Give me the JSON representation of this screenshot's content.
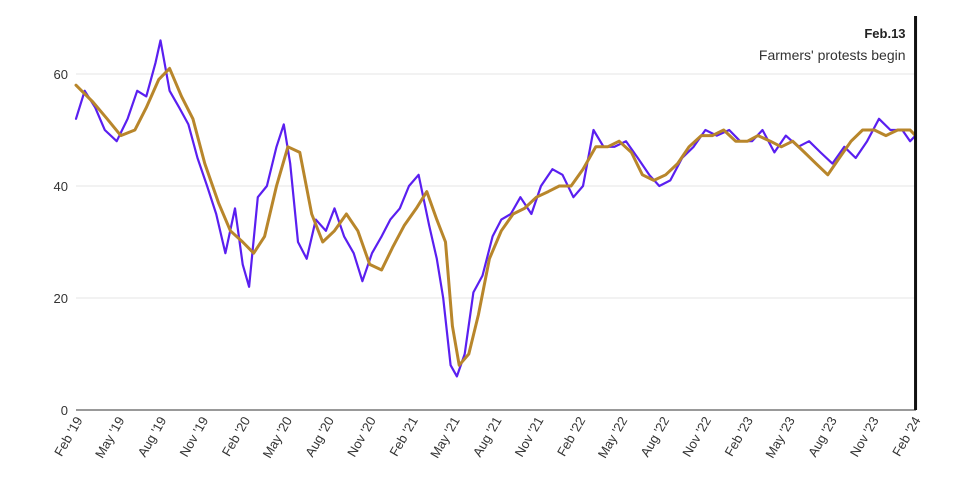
{
  "chart_data": {
    "type": "line",
    "title": "",
    "xlabel": "",
    "ylabel": "",
    "ylim": [
      0,
      70
    ],
    "yticks": [
      0,
      20,
      40,
      60
    ],
    "grid": true,
    "x_tick_labels": [
      "Feb '19",
      "May '19",
      "Aug '19",
      "Nov '19",
      "Feb '20",
      "May '20",
      "Aug '20",
      "Nov '20",
      "Feb '21",
      "May '21",
      "Aug '21",
      "Nov '21",
      "Feb '22",
      "May '22",
      "Aug '22",
      "Nov '22",
      "Feb '23",
      "May '23",
      "Aug '23",
      "Nov '23",
      "Feb '24"
    ],
    "series": [
      {
        "color": "#5a1ff0",
        "style": "daily",
        "x": [
          "2019-02-01",
          "2019-02-20",
          "2019-03-15",
          "2019-04-05",
          "2019-05-01",
          "2019-05-25",
          "2019-06-15",
          "2019-07-05",
          "2019-07-25",
          "2019-08-05",
          "2019-08-25",
          "2019-09-15",
          "2019-10-05",
          "2019-10-25",
          "2019-11-15",
          "2019-12-05",
          "2019-12-25",
          "2020-01-15",
          "2020-02-01",
          "2020-02-15",
          "2020-03-05",
          "2020-03-25",
          "2020-04-15",
          "2020-05-01",
          "2020-05-15",
          "2020-06-01",
          "2020-06-20",
          "2020-07-10",
          "2020-08-01",
          "2020-08-20",
          "2020-09-10",
          "2020-10-01",
          "2020-10-20",
          "2020-11-10",
          "2020-12-01",
          "2020-12-20",
          "2021-01-10",
          "2021-01-30",
          "2021-02-20",
          "2021-03-15",
          "2021-04-01",
          "2021-04-15",
          "2021-05-01",
          "2021-05-15",
          "2021-06-01",
          "2021-06-20",
          "2021-07-10",
          "2021-08-01",
          "2021-08-20",
          "2021-09-10",
          "2021-10-01",
          "2021-10-25",
          "2021-11-15",
          "2021-12-10",
          "2022-01-01",
          "2022-01-25",
          "2022-02-15",
          "2022-03-10",
          "2022-04-01",
          "2022-04-25",
          "2022-05-20",
          "2022-06-15",
          "2022-07-10",
          "2022-08-01",
          "2022-08-25",
          "2022-09-20",
          "2022-10-15",
          "2022-11-10",
          "2022-12-05",
          "2023-01-01",
          "2023-01-25",
          "2023-02-20",
          "2023-03-15",
          "2023-04-10",
          "2023-05-05",
          "2023-06-01",
          "2023-06-25",
          "2023-07-20",
          "2023-08-15",
          "2023-09-10",
          "2023-10-05",
          "2023-10-30",
          "2023-11-25",
          "2023-12-20",
          "2024-01-15",
          "2024-02-01",
          "2024-02-13"
        ],
        "values": [
          52,
          57,
          54,
          50,
          48,
          52,
          57,
          56,
          62,
          66,
          57,
          54,
          51,
          45,
          40,
          35,
          28,
          36,
          26,
          22,
          38,
          40,
          47,
          51,
          44,
          30,
          27,
          34,
          32,
          36,
          31,
          28,
          23,
          28,
          31,
          34,
          36,
          40,
          42,
          33,
          27,
          20,
          8,
          6,
          10,
          21,
          24,
          31,
          34,
          35,
          38,
          35,
          40,
          43,
          42,
          38,
          40,
          50,
          47,
          47,
          48,
          45,
          42,
          40,
          41,
          45,
          47,
          50,
          49,
          50,
          48,
          48,
          50,
          46,
          49,
          47,
          48,
          46,
          44,
          47,
          45,
          48,
          52,
          50,
          50,
          48,
          49
        ]
      },
      {
        "color": "#b8862b",
        "style": "smoothed",
        "x": [
          "2019-02-01",
          "2019-03-10",
          "2019-04-10",
          "2019-05-10",
          "2019-06-10",
          "2019-07-05",
          "2019-08-01",
          "2019-08-25",
          "2019-09-20",
          "2019-10-15",
          "2019-11-10",
          "2019-12-10",
          "2020-01-05",
          "2020-02-01",
          "2020-02-25",
          "2020-03-20",
          "2020-04-15",
          "2020-05-10",
          "2020-06-05",
          "2020-07-01",
          "2020-07-25",
          "2020-08-20",
          "2020-09-15",
          "2020-10-10",
          "2020-11-05",
          "2020-12-01",
          "2020-12-25",
          "2021-01-20",
          "2021-02-15",
          "2021-03-10",
          "2021-04-01",
          "2021-04-20",
          "2021-05-05",
          "2021-05-20",
          "2021-06-10",
          "2021-07-01",
          "2021-07-25",
          "2021-08-20",
          "2021-09-15",
          "2021-10-10",
          "2021-11-05",
          "2021-12-01",
          "2021-12-25",
          "2022-01-20",
          "2022-02-15",
          "2022-03-15",
          "2022-04-10",
          "2022-05-05",
          "2022-06-01",
          "2022-06-25",
          "2022-07-20",
          "2022-08-15",
          "2022-09-10",
          "2022-10-05",
          "2022-11-01",
          "2022-11-25",
          "2022-12-20",
          "2023-01-15",
          "2023-02-10",
          "2023-03-05",
          "2023-04-01",
          "2023-04-25",
          "2023-05-20",
          "2023-06-15",
          "2023-07-10",
          "2023-08-05",
          "2023-08-30",
          "2023-09-25",
          "2023-10-20",
          "2023-11-15",
          "2023-12-10",
          "2024-01-05",
          "2024-02-01",
          "2024-02-13"
        ],
        "values": [
          58,
          55,
          52,
          49,
          50,
          54,
          59,
          61,
          56,
          52,
          44,
          37,
          32,
          30,
          28,
          31,
          40,
          47,
          46,
          35,
          30,
          32,
          35,
          32,
          26,
          25,
          29,
          33,
          36,
          39,
          34,
          30,
          15,
          8,
          10,
          17,
          27,
          32,
          35,
          36,
          38,
          39,
          40,
          40,
          43,
          47,
          47,
          48,
          46,
          42,
          41,
          42,
          44,
          47,
          49,
          49,
          50,
          48,
          48,
          49,
          48,
          47,
          48,
          46,
          44,
          42,
          45,
          48,
          50,
          50,
          49,
          50,
          50,
          49
        ]
      }
    ],
    "annotation": {
      "date": "2024-02-13",
      "title": "Feb.13",
      "text": "Farmers' protests begin"
    }
  }
}
